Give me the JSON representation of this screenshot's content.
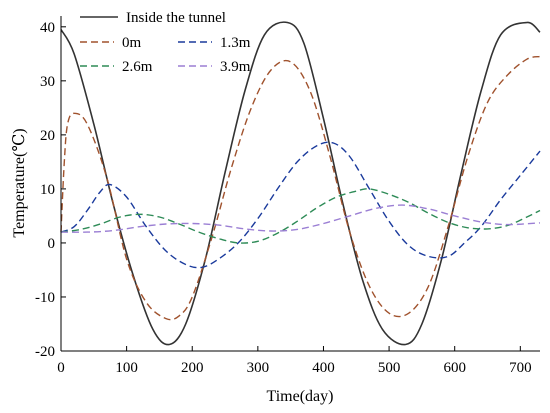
{
  "chart_data": {
    "type": "line",
    "xlabel": "Time(day)",
    "ylabel": "Temperature(℃)",
    "xlim": [
      0,
      730
    ],
    "ylim": [
      -20,
      42
    ],
    "xticks": [
      0,
      100,
      200,
      300,
      400,
      500,
      600,
      700
    ],
    "yticks": [
      -20,
      -10,
      0,
      10,
      20,
      30,
      40
    ],
    "grid": false,
    "legend_position": "top-left",
    "series": [
      {
        "name": "Inside the tunnel",
        "color": "#333333",
        "dash": "solid",
        "x": [
          0,
          20,
          50,
          80,
          110,
          140,
          165,
          190,
          220,
          250,
          280,
          310,
          345,
          370,
          400,
          430,
          460,
          490,
          525,
          550,
          580,
          610,
          640,
          670,
          710,
          730
        ],
        "y": [
          39.5,
          35,
          22,
          7,
          -6,
          -16,
          -18.8,
          -15,
          -3,
          13,
          28,
          38.5,
          40.8,
          37,
          23,
          7,
          -7,
          -16,
          -18.8,
          -15,
          -3,
          13,
          28,
          38.5,
          40.8,
          39
        ]
      },
      {
        "name": "0m",
        "color": "#a0522d",
        "dash": "dashed",
        "x": [
          0,
          5,
          10,
          20,
          40,
          70,
          100,
          130,
          160,
          180,
          200,
          230,
          260,
          290,
          320,
          350,
          380,
          410,
          440,
          470,
          500,
          530,
          560,
          590,
          620,
          650,
          680,
          710,
          730
        ],
        "y": [
          2,
          15,
          22,
          24,
          22,
          12,
          -3,
          -11,
          -14,
          -13.5,
          -10,
          1,
          14,
          25,
          32,
          33.5,
          28,
          16,
          2,
          -8,
          -13,
          -13,
          -8,
          3,
          16,
          26,
          31,
          34,
          34.5
        ]
      },
      {
        "name": "1.3m",
        "color": "#1a3a9c",
        "dash": "dashed",
        "x": [
          0,
          20,
          40,
          60,
          75,
          100,
          130,
          160,
          190,
          215,
          240,
          270,
          300,
          330,
          360,
          390,
          415,
          440,
          470,
          500,
          530,
          560,
          590,
          615,
          640,
          670,
          700,
          730
        ],
        "y": [
          2,
          3,
          6,
          9.5,
          10.8,
          8.5,
          3,
          -1.5,
          -4,
          -4.5,
          -3,
          0,
          4.5,
          10,
          15,
          18,
          18.5,
          16,
          10,
          4,
          -0.5,
          -2.5,
          -2.5,
          0,
          3,
          8,
          12.5,
          17
        ]
      },
      {
        "name": "2.6m",
        "color": "#2e8b57",
        "dash": "dashed",
        "x": [
          0,
          30,
          60,
          90,
          120,
          150,
          180,
          210,
          240,
          270,
          300,
          330,
          360,
          390,
          420,
          450,
          470,
          500,
          530,
          560,
          590,
          620,
          650,
          680,
          710,
          730
        ],
        "y": [
          2,
          2.5,
          3.5,
          4.8,
          5.3,
          4.8,
          3.5,
          2,
          0.8,
          0,
          0.3,
          1.8,
          4,
          6.5,
          8.5,
          9.6,
          10,
          9,
          7.5,
          5.5,
          3.8,
          2.8,
          2.6,
          3.2,
          4.8,
          6
        ]
      },
      {
        "name": "3.9m",
        "color": "#9b7fd4",
        "dash": "dashed",
        "x": [
          0,
          40,
          80,
          120,
          160,
          200,
          240,
          280,
          320,
          360,
          400,
          440,
          480,
          520,
          560,
          600,
          640,
          680,
          730
        ],
        "y": [
          2,
          2,
          2.3,
          3,
          3.5,
          3.6,
          3.3,
          2.6,
          2.2,
          2.5,
          3.6,
          5,
          6.4,
          7,
          6.3,
          5,
          3.9,
          3.4,
          3.7
        ]
      }
    ]
  }
}
